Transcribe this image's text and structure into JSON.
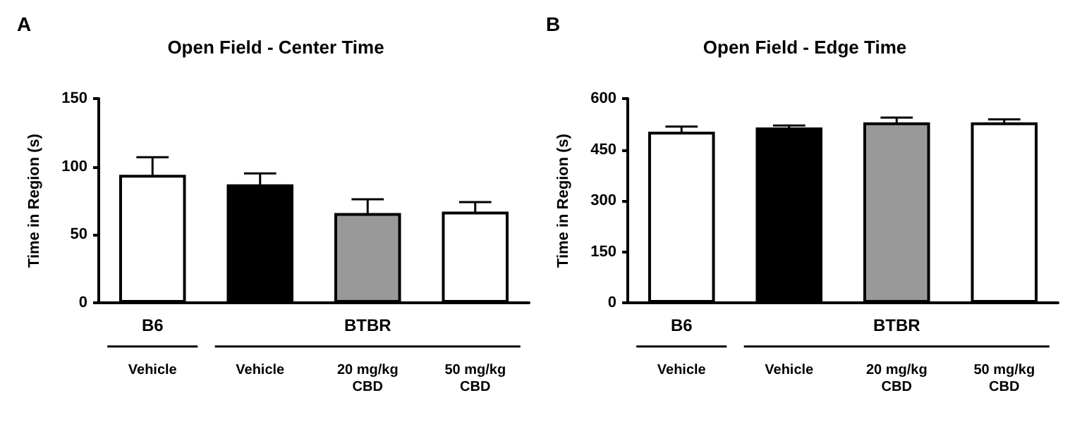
{
  "chart_data": [
    {
      "type": "bar",
      "title": "Open Field - Center Time",
      "ylabel": "Time in Region (s)",
      "annotations": [
        "A",
        "B6",
        "BTBR"
      ],
      "categories": [
        "Vehicle",
        "Vehicle",
        "20 mg/kg\nCBD",
        "50 mg/kg\nCBD"
      ],
      "values": [
        94,
        87,
        66,
        67
      ],
      "errors": [
        13,
        8,
        10,
        7
      ],
      "colors": [
        "#ffffff",
        "#000000",
        "#999999",
        "#ffffff"
      ],
      "ylim": [
        0,
        150
      ],
      "yticks": [
        0,
        50,
        100,
        150
      ]
    },
    {
      "type": "bar",
      "title": "Open Field - Edge Time",
      "ylabel": "Time in Region (s)",
      "annotations": [
        "B",
        "B6",
        "BTBR"
      ],
      "categories": [
        "Vehicle",
        "Vehicle",
        "20 mg/kg\nCBD",
        "50 mg/kg\nCBD"
      ],
      "values": [
        503,
        515,
        530,
        530
      ],
      "errors": [
        15,
        6,
        14,
        9
      ],
      "colors": [
        "#ffffff",
        "#000000",
        "#999999",
        "#ffffff"
      ],
      "ylim": [
        0,
        600
      ],
      "yticks": [
        0,
        150,
        300,
        450,
        600
      ]
    }
  ]
}
